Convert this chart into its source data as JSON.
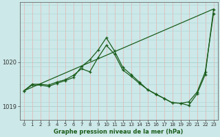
{
  "bg_color": "#cce8e8",
  "grid_color_h": "#aad4d4",
  "grid_color_v": "#e8b0b0",
  "line_color": "#1a5c1a",
  "xlabel": "Graphe pression niveau de la mer (hPa)",
  "ylim": [
    1018.7,
    1021.35
  ],
  "xlim": [
    -0.5,
    23.5
  ],
  "yticks": [
    1019,
    1020
  ],
  "xticks": [
    0,
    1,
    2,
    3,
    4,
    5,
    6,
    7,
    8,
    9,
    10,
    11,
    12,
    13,
    14,
    15,
    16,
    17,
    18,
    19,
    20,
    21,
    22,
    23
  ],
  "line1_x": [
    0,
    1,
    2,
    3,
    4,
    5,
    6,
    7,
    8,
    9,
    10,
    11,
    12,
    13,
    14,
    15,
    16,
    17,
    18,
    19,
    20,
    21,
    22,
    23
  ],
  "line1_y": [
    1019.35,
    1019.5,
    1019.5,
    1019.48,
    1019.55,
    1019.6,
    1019.7,
    1019.85,
    1019.78,
    1020.1,
    1020.38,
    1020.18,
    1019.82,
    1019.68,
    1019.52,
    1019.38,
    1019.28,
    1019.18,
    1019.08,
    1019.07,
    1019.1,
    1019.32,
    1019.78,
    1021.1
  ],
  "line2_x": [
    0,
    1,
    2,
    3,
    4,
    5,
    6,
    7,
    8,
    9,
    10,
    11,
    12,
    13,
    14,
    15,
    16,
    17,
    18,
    19,
    20,
    21,
    22,
    23
  ],
  "line2_y": [
    1019.35,
    1019.48,
    1019.48,
    1019.45,
    1019.52,
    1019.58,
    1019.65,
    1019.9,
    1020.05,
    1020.27,
    1020.55,
    1020.25,
    1019.88,
    1019.72,
    1019.55,
    1019.38,
    1019.27,
    1019.18,
    1019.08,
    1019.07,
    1019.02,
    1019.28,
    1019.72,
    1021.18
  ],
  "line3_x": [
    0,
    23
  ],
  "line3_y": [
    1019.35,
    1021.2
  ]
}
